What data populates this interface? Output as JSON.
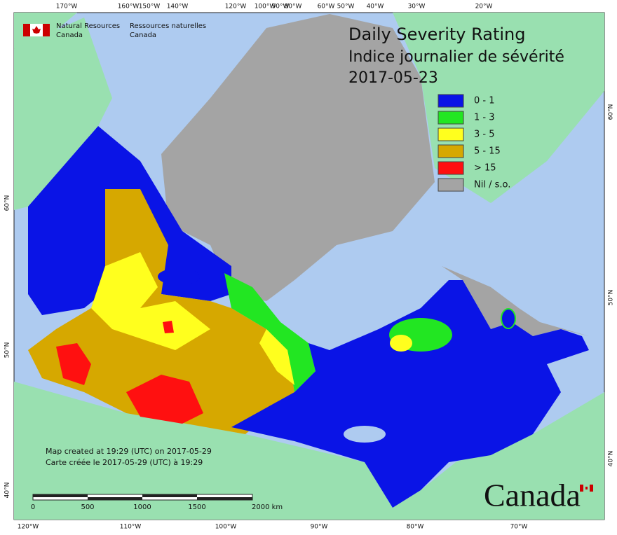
{
  "header": {
    "agency_en": [
      "Natural Resources",
      "Canada"
    ],
    "agency_fr": [
      "Ressources naturelles",
      "Canada"
    ],
    "title": [
      "Daily Severity Rating",
      "Indice journalier de sévérité",
      "2017-05-23"
    ]
  },
  "legend": [
    {
      "label": "0 - 1",
      "color": "#0a14e6"
    },
    {
      "label": "1 - 3",
      "color": "#22e622"
    },
    {
      "label": "3 - 5",
      "color": "#ffff1e"
    },
    {
      "label": "5 - 15",
      "color": "#d6a800"
    },
    {
      "label": "> 15",
      "color": "#ff1010"
    },
    {
      "label": "Nil / s.o.",
      "color": "#a4a4a4"
    }
  ],
  "graticule": {
    "top": [
      "170°W",
      "160°W",
      "150°W",
      "140°W",
      "120°W",
      "100°W",
      "90°W",
      "80°W",
      "60°W",
      "50°W",
      "40°W",
      "30°W",
      "20°W"
    ],
    "bottom": [
      "120°W",
      "110°W",
      "100°W",
      "90°W",
      "80°W",
      "70°W"
    ],
    "left": [
      "60°N",
      "50°N",
      "40°N"
    ],
    "right": [
      "60°N",
      "50°N",
      "40°N"
    ]
  },
  "credits": [
    "Map created at 19:29 (UTC) on 2017-05-29",
    "Carte créée le 2017-05-29 (UTC) à 19:29"
  ],
  "scale": [
    "0",
    "500",
    "1000",
    "1500",
    "2000  km"
  ],
  "wordmark": "Canada"
}
